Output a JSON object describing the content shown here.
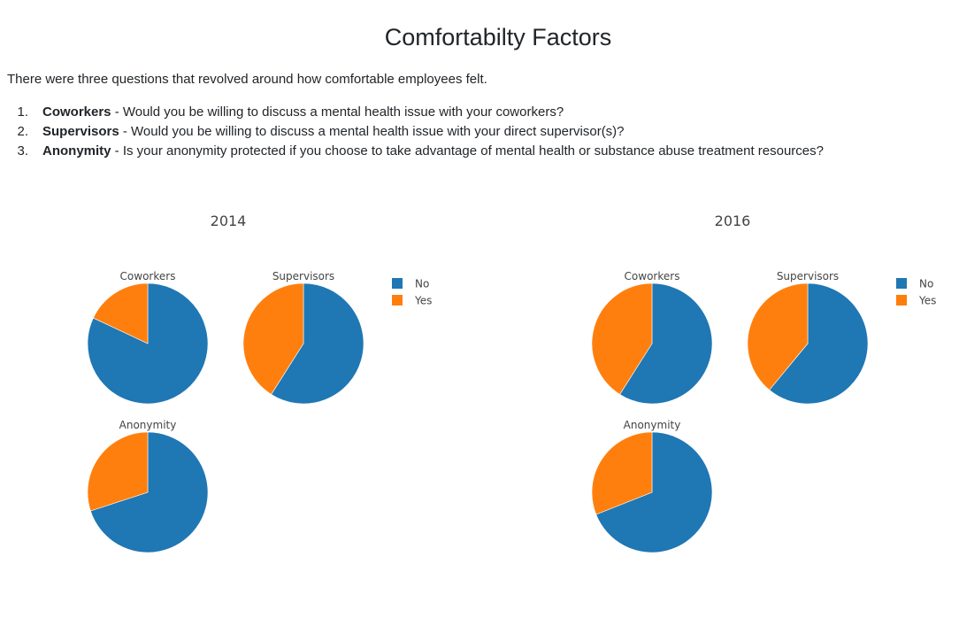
{
  "page": {
    "title": "Comfortabilty Factors",
    "intro": "There were three questions that revolved around how comfortable employees felt.",
    "questions": [
      {
        "number": "1.",
        "label": "Coworkers",
        "text": " - Would you be willing to discuss a mental health issue with your coworkers?"
      },
      {
        "number": "2.",
        "label": "Supervisors",
        "text": " - Would you be willing to discuss a mental health issue with your direct supervisor(s)?"
      },
      {
        "number": "3.",
        "label": "Anonymity",
        "text": " - Is your anonymity protected if you choose to take advantage of mental health or substance abuse treatment resources?"
      }
    ]
  },
  "colors": {
    "No": "#1f77b4",
    "Yes": "#ff7f0e"
  },
  "chart_data": [
    {
      "type": "pie",
      "title": "2014",
      "legend": [
        "No",
        "Yes"
      ],
      "legend_position": "top-right",
      "pies": [
        {
          "name": "Coworkers",
          "labels": [
            "No",
            "Yes"
          ],
          "values": [
            0.82,
            0.18
          ]
        },
        {
          "name": "Supervisors",
          "labels": [
            "No",
            "Yes"
          ],
          "values": [
            0.59,
            0.41
          ]
        },
        {
          "name": "Anonymity",
          "labels": [
            "No",
            "Yes"
          ],
          "values": [
            0.7,
            0.3
          ]
        }
      ]
    },
    {
      "type": "pie",
      "title": "2016",
      "legend": [
        "No",
        "Yes"
      ],
      "legend_position": "top-right",
      "pies": [
        {
          "name": "Coworkers",
          "labels": [
            "No",
            "Yes"
          ],
          "values": [
            0.59,
            0.41
          ]
        },
        {
          "name": "Supervisors",
          "labels": [
            "No",
            "Yes"
          ],
          "values": [
            0.61,
            0.39
          ]
        },
        {
          "name": "Anonymity",
          "labels": [
            "No",
            "Yes"
          ],
          "values": [
            0.69,
            0.31
          ]
        }
      ]
    }
  ]
}
